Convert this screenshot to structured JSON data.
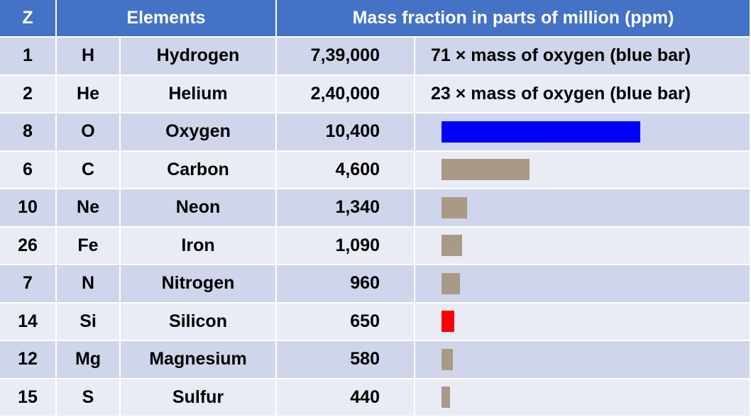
{
  "table": {
    "header": [
      "Z",
      "Elements",
      "Mass fraction in parts of million (ppm)"
    ],
    "rows": [
      {
        "z": 1,
        "symbol": "H",
        "name": "Hydrogen",
        "mass": 739000,
        "mass_label": "7,39,000",
        "note": "71 × mass of oxygen (blue bar)"
      },
      {
        "z": 2,
        "symbol": "He",
        "name": "Helium",
        "mass": 240000,
        "mass_label": "2,40,000",
        "note": "23 × mass of oxygen (blue bar)"
      },
      {
        "z": 8,
        "symbol": "O",
        "name": "Oxygen",
        "mass": 10400,
        "mass_label": "10,400",
        "bar_color": "#0000ff"
      },
      {
        "z": 6,
        "symbol": "C",
        "name": "Carbon",
        "mass": 4600,
        "mass_label": "4,600",
        "bar_color": "#a99a88"
      },
      {
        "z": 10,
        "symbol": "Ne",
        "name": "Neon",
        "mass": 1340,
        "mass_label": "1,340",
        "bar_color": "#a99a88"
      },
      {
        "z": 26,
        "symbol": "Fe",
        "name": "Iron",
        "mass": 1090,
        "mass_label": "1,090",
        "bar_color": "#a99a88"
      },
      {
        "z": 7,
        "symbol": "N",
        "name": "Nitrogen",
        "mass": 960,
        "mass_label": "960",
        "bar_color": "#a99a88"
      },
      {
        "z": 14,
        "symbol": "Si",
        "name": "Silicon",
        "mass": 650,
        "mass_label": "650",
        "bar_color": "#ff0000"
      },
      {
        "z": 12,
        "symbol": "Mg",
        "name": "Magnesium",
        "mass": 580,
        "mass_label": "580",
        "bar_color": "#a99a88"
      },
      {
        "z": 15,
        "symbol": "S",
        "name": "Sulfur",
        "mass": 440,
        "mass_label": "440",
        "bar_color": "#a99a88"
      }
    ]
  }
}
